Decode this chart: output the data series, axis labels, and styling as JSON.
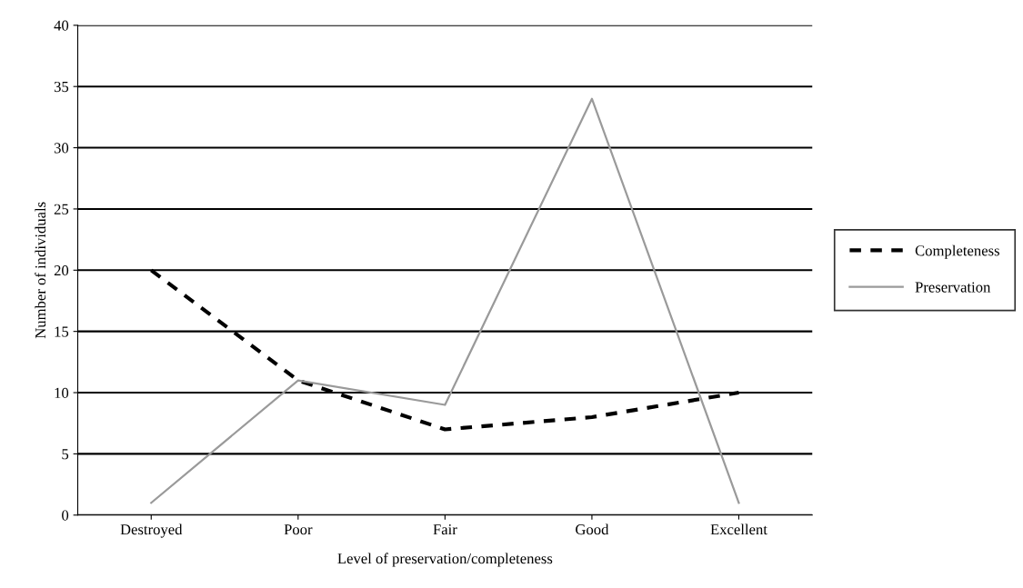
{
  "chart_data": {
    "type": "line",
    "xlabel": "Level of preservation/completeness",
    "ylabel": "Number of individuals",
    "categories": [
      "Destroyed",
      "Poor",
      "Fair",
      "Good",
      "Excellent"
    ],
    "series": [
      {
        "name": "Completeness",
        "color": "#000000",
        "line_style": "dashed",
        "values": [
          20,
          11,
          7,
          8,
          10
        ]
      },
      {
        "name": "Preservation",
        "color": "#9a9a9a",
        "line_style": "solid",
        "values": [
          1,
          11,
          9,
          34,
          1
        ]
      }
    ],
    "ylim": [
      0,
      40
    ],
    "yticks": [
      0,
      5,
      10,
      15,
      20,
      25,
      30,
      35,
      40
    ],
    "grid": "y",
    "legend": "right",
    "marker": "none"
  }
}
